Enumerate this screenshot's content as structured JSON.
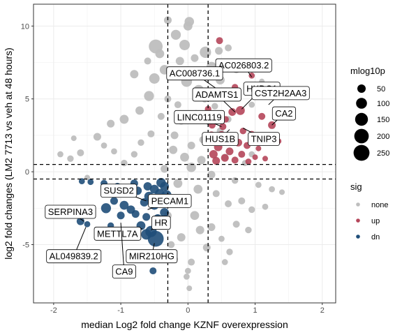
{
  "chart_data": {
    "type": "scatter",
    "title": "",
    "xlabel": "median Log2 fold change KZNF overexpression",
    "ylabel": "log2 fold changes (LM2 7713 vs veh at 48 hours)",
    "xlim": [
      -2.3,
      2.2
    ],
    "ylim": [
      -9.0,
      11.5
    ],
    "x_ticks": [
      -2,
      -1,
      0,
      1,
      2
    ],
    "y_ticks": [
      -5,
      0,
      5,
      10
    ],
    "x_tick_labels": [
      "-2",
      "-1",
      "0",
      "1",
      "2"
    ],
    "y_tick_labels": [
      "-5",
      "0",
      "5",
      "10"
    ],
    "grid": true,
    "vlines": [
      -0.3,
      0.3
    ],
    "hlines": [
      0.5,
      -0.5
    ],
    "legend_size": {
      "title": "mlog10p",
      "entries": [
        {
          "label": "50",
          "value": 50
        },
        {
          "label": "100",
          "value": 100
        },
        {
          "label": "150",
          "value": 150
        },
        {
          "label": "200",
          "value": 200
        },
        {
          "label": "250",
          "value": 250
        }
      ]
    },
    "legend_sig": {
      "title": "sig",
      "entries": [
        {
          "label": "none",
          "color": "#bebebe"
        },
        {
          "label": "up",
          "color": "#b5465a"
        },
        {
          "label": "dn",
          "color": "#1f4e79"
        }
      ]
    },
    "colors": {
      "none": "#bebebe",
      "up": "#b5465a",
      "dn": "#1f4e79"
    },
    "series": [
      {
        "name": "none",
        "points": [
          {
            "x": 0.0,
            "y": 10.0,
            "p": 60
          },
          {
            "x": -0.48,
            "y": 8.6,
            "p": 180
          },
          {
            "x": -0.18,
            "y": 9.4,
            "p": 80
          },
          {
            "x": 0.02,
            "y": 10.3,
            "p": 70
          },
          {
            "x": -0.3,
            "y": 10.4,
            "p": 40
          },
          {
            "x": 0.26,
            "y": 8.2,
            "p": 110
          },
          {
            "x": -0.05,
            "y": 8.7,
            "p": 90
          },
          {
            "x": 0.35,
            "y": 7.2,
            "p": 80
          },
          {
            "x": -0.35,
            "y": 7.0,
            "p": 70
          },
          {
            "x": -0.5,
            "y": 6.4,
            "p": 90
          },
          {
            "x": -0.8,
            "y": 6.7,
            "p": 50
          },
          {
            "x": -0.58,
            "y": 5.2,
            "p": 80
          },
          {
            "x": -0.72,
            "y": 4.2,
            "p": 50
          },
          {
            "x": -0.95,
            "y": 3.6,
            "p": 60
          },
          {
            "x": -1.15,
            "y": 3.3,
            "p": 40
          },
          {
            "x": -1.35,
            "y": 2.4,
            "p": 40
          },
          {
            "x": -1.6,
            "y": 1.3,
            "p": 30
          },
          {
            "x": -1.75,
            "y": 0.9,
            "p": 25
          },
          {
            "x": -1.9,
            "y": 1.2,
            "p": 20
          },
          {
            "x": -0.02,
            "y": 6.2,
            "p": 100
          },
          {
            "x": 0.16,
            "y": 5.6,
            "p": 90
          },
          {
            "x": 0.48,
            "y": 6.3,
            "p": 60
          },
          {
            "x": 0.46,
            "y": 8.3,
            "p": 40
          },
          {
            "x": 0.6,
            "y": 8.5,
            "p": 30
          },
          {
            "x": -0.42,
            "y": 8.1,
            "p": 60
          },
          {
            "x": -0.12,
            "y": 7.6,
            "p": 50
          },
          {
            "x": 0.1,
            "y": 7.8,
            "p": 40
          },
          {
            "x": -0.6,
            "y": 7.6,
            "p": 30
          },
          {
            "x": 0.72,
            "y": 7.0,
            "p": 30
          },
          {
            "x": 0.95,
            "y": 4.6,
            "p": 20
          },
          {
            "x": -0.2,
            "y": 2.5,
            "p": 40
          },
          {
            "x": 0.05,
            "y": 1.8,
            "p": 40
          },
          {
            "x": 0.22,
            "y": 2.2,
            "p": 30
          },
          {
            "x": -0.1,
            "y": 3.5,
            "p": 40
          },
          {
            "x": 0.12,
            "y": 4.0,
            "p": 30
          },
          {
            "x": -0.4,
            "y": 3.8,
            "p": 30
          },
          {
            "x": 0.55,
            "y": 1.0,
            "p": 30
          },
          {
            "x": 0.7,
            "y": -0.6,
            "p": 25
          },
          {
            "x": 0.85,
            "y": 0.6,
            "p": 20
          },
          {
            "x": 1.05,
            "y": -0.9,
            "p": 20
          },
          {
            "x": 1.25,
            "y": -1.2,
            "p": 20
          },
          {
            "x": 1.4,
            "y": -1.4,
            "p": 15
          },
          {
            "x": 0.6,
            "y": -2.2,
            "p": 30
          },
          {
            "x": 0.8,
            "y": -2.0,
            "p": 30
          },
          {
            "x": 0.95,
            "y": -2.6,
            "p": 25
          },
          {
            "x": 1.15,
            "y": -2.4,
            "p": 20
          },
          {
            "x": 0.72,
            "y": -3.6,
            "p": 30
          },
          {
            "x": 0.9,
            "y": -4.0,
            "p": 25
          },
          {
            "x": 0.5,
            "y": -4.6,
            "p": 20
          },
          {
            "x": 0.62,
            "y": -5.5,
            "p": 25
          },
          {
            "x": 0.28,
            "y": -5.2,
            "p": 40
          },
          {
            "x": 0.05,
            "y": -6.2,
            "p": 30
          },
          {
            "x": 0.0,
            "y": -6.8,
            "p": 20
          },
          {
            "x": -0.2,
            "y": -6.0,
            "p": 30
          },
          {
            "x": -0.1,
            "y": -4.5,
            "p": 50
          },
          {
            "x": 0.1,
            "y": -3.0,
            "p": 60
          },
          {
            "x": -0.05,
            "y": -2.0,
            "p": 70
          },
          {
            "x": 0.15,
            "y": -1.2,
            "p": 60
          },
          {
            "x": -0.15,
            "y": -0.8,
            "p": 60
          },
          {
            "x": 0.05,
            "y": 0.3,
            "p": 70
          },
          {
            "x": -0.05,
            "y": 1.0,
            "p": 60
          },
          {
            "x": 0.2,
            "y": 0.8,
            "p": 50
          },
          {
            "x": -0.22,
            "y": 1.5,
            "p": 50
          },
          {
            "x": 0.35,
            "y": -0.2,
            "p": 40
          },
          {
            "x": -0.35,
            "y": 0.2,
            "p": 40
          },
          {
            "x": 0.42,
            "y": -1.5,
            "p": 30
          },
          {
            "x": -0.45,
            "y": -1.8,
            "p": 30
          },
          {
            "x": 0.48,
            "y": 2.8,
            "p": 30
          },
          {
            "x": -0.55,
            "y": 2.6,
            "p": 30
          },
          {
            "x": -0.8,
            "y": 1.2,
            "p": 25
          },
          {
            "x": -0.95,
            "y": 0.6,
            "p": 25
          },
          {
            "x": -1.1,
            "y": 1.4,
            "p": 20
          },
          {
            "x": -1.25,
            "y": 1.8,
            "p": 20
          },
          {
            "x": -0.7,
            "y": 2.0,
            "p": 25
          },
          {
            "x": 0.32,
            "y": 3.4,
            "p": 30
          },
          {
            "x": 0.25,
            "y": 5.0,
            "p": 30
          },
          {
            "x": 0.4,
            "y": 4.5,
            "p": 25
          },
          {
            "x": -0.3,
            "y": 5.0,
            "p": 30
          },
          {
            "x": -0.15,
            "y": 4.6,
            "p": 30
          },
          {
            "x": 0.6,
            "y": 3.6,
            "p": 25
          },
          {
            "x": -0.02,
            "y": -7.2,
            "p": 20
          },
          {
            "x": 0.02,
            "y": -8.0,
            "p": 15
          },
          {
            "x": 0.35,
            "y": -3.8,
            "p": 40
          },
          {
            "x": -0.3,
            "y": -3.0,
            "p": 40
          },
          {
            "x": 0.7,
            "y": 5.5,
            "p": 20
          },
          {
            "x": 1.1,
            "y": 6.2,
            "p": 15
          },
          {
            "x": 1.3,
            "y": 2.4,
            "p": 15
          },
          {
            "x": -1.5,
            "y": -0.4,
            "p": 15
          },
          {
            "x": -1.7,
            "y": 2.3,
            "p": 15
          },
          {
            "x": 0.55,
            "y": -6.2,
            "p": 20
          },
          {
            "x": -0.25,
            "y": -5.0,
            "p": 30
          },
          {
            "x": 0.18,
            "y": -4.0,
            "p": 50
          },
          {
            "x": 0.95,
            "y": 1.2,
            "p": 20
          }
        ]
      },
      {
        "name": "up",
        "points": [
          {
            "x": 0.47,
            "y": 9.0,
            "p": 30
          },
          {
            "x": 0.7,
            "y": 5.8,
            "p": 25
          },
          {
            "x": 0.78,
            "y": 4.2,
            "p": 60
          },
          {
            "x": 0.66,
            "y": 4.1,
            "p": 40
          },
          {
            "x": 0.95,
            "y": 6.6,
            "p": 20
          },
          {
            "x": 1.1,
            "y": 3.8,
            "p": 30
          },
          {
            "x": 1.25,
            "y": 3.2,
            "p": 40
          },
          {
            "x": 1.35,
            "y": 2.1,
            "p": 15
          },
          {
            "x": 1.05,
            "y": 1.6,
            "p": 15
          },
          {
            "x": 0.36,
            "y": 3.2,
            "p": 30
          },
          {
            "x": 0.52,
            "y": 3.1,
            "p": 30
          },
          {
            "x": 0.5,
            "y": 2.5,
            "p": 50
          },
          {
            "x": 0.35,
            "y": 2.5,
            "p": 40
          },
          {
            "x": 0.6,
            "y": 2.3,
            "p": 40
          },
          {
            "x": 0.75,
            "y": 2.0,
            "p": 40
          },
          {
            "x": 0.88,
            "y": 1.8,
            "p": 30
          },
          {
            "x": 0.45,
            "y": 1.7,
            "p": 50
          },
          {
            "x": 0.62,
            "y": 1.4,
            "p": 40
          },
          {
            "x": 0.38,
            "y": 1.2,
            "p": 50
          },
          {
            "x": 0.8,
            "y": 1.2,
            "p": 30
          },
          {
            "x": 0.55,
            "y": 0.95,
            "p": 40
          },
          {
            "x": 0.7,
            "y": 0.8,
            "p": 30
          },
          {
            "x": 0.42,
            "y": 0.75,
            "p": 40
          },
          {
            "x": 0.9,
            "y": 0.7,
            "p": 20
          },
          {
            "x": 1.15,
            "y": 0.9,
            "p": 15
          },
          {
            "x": 0.82,
            "y": 2.8,
            "p": 25
          },
          {
            "x": 0.56,
            "y": 3.6,
            "p": 25
          },
          {
            "x": 0.3,
            "y": 4.3,
            "p": 25
          },
          {
            "x": 0.95,
            "y": 2.6,
            "p": 20
          },
          {
            "x": 1.0,
            "y": 1.0,
            "p": 15
          }
        ]
      },
      {
        "name": "dn",
        "points": [
          {
            "x": -1.6,
            "y": -3.4,
            "p": 40
          },
          {
            "x": -1.5,
            "y": -3.6,
            "p": 20
          },
          {
            "x": -1.22,
            "y": -2.5,
            "p": 80
          },
          {
            "x": -1.1,
            "y": -2.0,
            "p": 40
          },
          {
            "x": -1.0,
            "y": -3.0,
            "p": 40
          },
          {
            "x": -0.95,
            "y": -2.3,
            "p": 60
          },
          {
            "x": -0.85,
            "y": -2.6,
            "p": 50
          },
          {
            "x": -0.78,
            "y": -2.9,
            "p": 40
          },
          {
            "x": -0.7,
            "y": -3.7,
            "p": 60
          },
          {
            "x": -0.62,
            "y": -4.3,
            "p": 90
          },
          {
            "x": -0.55,
            "y": -4.1,
            "p": 110
          },
          {
            "x": -0.48,
            "y": -4.6,
            "p": 250
          },
          {
            "x": -0.5,
            "y": -1.2,
            "p": 60
          },
          {
            "x": -0.42,
            "y": -1.5,
            "p": 70
          },
          {
            "x": -0.35,
            "y": -1.0,
            "p": 60
          },
          {
            "x": -0.6,
            "y": -1.0,
            "p": 50
          },
          {
            "x": -0.75,
            "y": -1.3,
            "p": 50
          },
          {
            "x": -0.9,
            "y": -1.1,
            "p": 40
          },
          {
            "x": -1.05,
            "y": -1.0,
            "p": 30
          },
          {
            "x": -1.25,
            "y": -0.8,
            "p": 30
          },
          {
            "x": -1.45,
            "y": -0.7,
            "p": 20
          },
          {
            "x": -1.58,
            "y": -0.65,
            "p": 20
          },
          {
            "x": -0.38,
            "y": -2.0,
            "p": 60
          },
          {
            "x": -0.5,
            "y": -2.3,
            "p": 60
          },
          {
            "x": -0.65,
            "y": -2.1,
            "p": 50
          },
          {
            "x": -0.35,
            "y": -2.8,
            "p": 60
          },
          {
            "x": -0.45,
            "y": -3.2,
            "p": 50
          },
          {
            "x": -0.58,
            "y": -1.7,
            "p": 70
          },
          {
            "x": -0.72,
            "y": -5.7,
            "p": 30
          },
          {
            "x": -0.52,
            "y": -6.8,
            "p": 30
          },
          {
            "x": -0.85,
            "y": -4.4,
            "p": 30
          },
          {
            "x": -1.15,
            "y": -3.7,
            "p": 25
          },
          {
            "x": -0.4,
            "y": -0.75,
            "p": 70
          },
          {
            "x": -0.8,
            "y": -0.8,
            "p": 40
          },
          {
            "x": -0.32,
            "y": -1.6,
            "p": 80
          },
          {
            "x": -0.62,
            "y": -3.1,
            "p": 40
          }
        ]
      }
    ],
    "labels": [
      {
        "text": "AC026803.2",
        "x": 0.83,
        "y": 7.3,
        "px": 0.95,
        "py": 6.5
      },
      {
        "text": "AC008736.1",
        "x": 0.1,
        "y": 6.75,
        "px": 0.55,
        "py": 5.3
      },
      {
        "text": "HKDC1",
        "x": 1.1,
        "y": 5.7,
        "px": 0.8,
        "py": 4.3
      },
      {
        "text": "ADAMTS1",
        "x": 0.43,
        "y": 5.3,
        "px": 0.7,
        "py": 4.1
      },
      {
        "text": "CST2H2AA3",
        "x": 1.38,
        "y": 5.4,
        "px": 1.2,
        "py": 4.6
      },
      {
        "text": "CA2",
        "x": 1.43,
        "y": 4.0,
        "px": 1.25,
        "py": 3.2
      },
      {
        "text": "LINC01119",
        "x": 0.17,
        "y": 3.75,
        "px": 0.5,
        "py": 3.1
      },
      {
        "text": "HUS1B",
        "x": 0.48,
        "y": 2.25,
        "px": 0.62,
        "py": 2.9
      },
      {
        "text": "TNIP3",
        "x": 1.13,
        "y": 2.25,
        "px": 0.82,
        "py": 3.0
      },
      {
        "text": "SUSD2",
        "x": -1.03,
        "y": -1.3,
        "px": -0.62,
        "py": -2.0
      },
      {
        "text": "PECAM1",
        "x": -0.27,
        "y": -2.0,
        "px": -0.6,
        "py": -2.6
      },
      {
        "text": "SERPINA3",
        "x": -1.75,
        "y": -2.75,
        "px": -1.55,
        "py": -3.4
      },
      {
        "text": "HR",
        "x": -0.4,
        "y": -3.5,
        "px": -0.55,
        "py": -4.0
      },
      {
        "text": "METTL7A",
        "x": -1.05,
        "y": -4.25,
        "px": -0.68,
        "py": -3.9
      },
      {
        "text": "AL049839.2",
        "x": -1.7,
        "y": -5.8,
        "px": -1.52,
        "py": -3.8
      },
      {
        "text": "MIR210HG",
        "x": -0.54,
        "y": -5.8,
        "px": -0.5,
        "py": -4.9
      },
      {
        "text": "CA9",
        "x": -0.95,
        "y": -6.85,
        "px": -1.0,
        "py": -3.5
      }
    ]
  }
}
